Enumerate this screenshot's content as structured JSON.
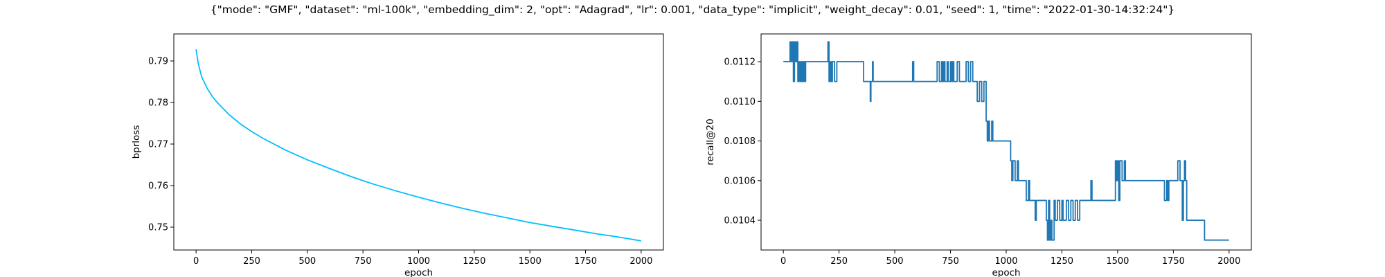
{
  "figure_title": "{\"mode\": \"GMF\", \"dataset\": \"ml-100k\", \"embedding_dim\": 2, \"opt\": \"Adagrad\", \"lr\": 0.001, \"data_type\": \"implicit\", \"weight_decay\": 0.01, \"seed\": 1, \"time\": \"2022-01-30-14:32:24\"}",
  "chart_data": [
    {
      "type": "line",
      "xlabel": "epoch",
      "ylabel": "bprloss",
      "xlim": [
        -100,
        2100
      ],
      "ylim": [
        0.7445,
        0.7965
      ],
      "xticks": [
        0,
        250,
        500,
        750,
        1000,
        1250,
        1500,
        1750,
        2000
      ],
      "xtick_labels": [
        "0",
        "250",
        "500",
        "750",
        "1000",
        "1250",
        "1500",
        "1750",
        "2000"
      ],
      "yticks": [
        0.75,
        0.76,
        0.77,
        0.78,
        0.79
      ],
      "ytick_labels": [
        "0.75",
        "0.76",
        "0.77",
        "0.78",
        "0.79"
      ],
      "grid": false,
      "series": [
        {
          "color": "#00bfff",
          "x": [
            0,
            10,
            25,
            50,
            75,
            100,
            150,
            200,
            250,
            300,
            400,
            500,
            600,
            700,
            800,
            900,
            1000,
            1100,
            1200,
            1300,
            1400,
            1500,
            1600,
            1700,
            1800,
            1900,
            2000
          ],
          "y": [
            0.7928,
            0.7893,
            0.7862,
            0.7834,
            0.7813,
            0.7797,
            0.777,
            0.7748,
            0.773,
            0.7714,
            0.7686,
            0.7662,
            0.7641,
            0.7621,
            0.7603,
            0.7587,
            0.7572,
            0.7558,
            0.7545,
            0.7533,
            0.7522,
            0.7511,
            0.7502,
            0.7493,
            0.7484,
            0.7476,
            0.7467
          ]
        }
      ]
    },
    {
      "type": "line",
      "xlabel": "epoch",
      "ylabel": "recall@20",
      "xlim": [
        -100,
        2100
      ],
      "ylim": [
        0.01025,
        0.01134
      ],
      "xticks": [
        0,
        250,
        500,
        750,
        1000,
        1250,
        1500,
        1750,
        2000
      ],
      "xtick_labels": [
        "0",
        "250",
        "500",
        "750",
        "1000",
        "1250",
        "1500",
        "1750",
        "2000"
      ],
      "yticks": [
        0.0104,
        0.0106,
        0.0108,
        0.011,
        0.0112
      ],
      "ytick_labels": [
        "0.0104",
        "0.0106",
        "0.0108",
        "0.0110",
        "0.0112"
      ],
      "grid": false,
      "series": [
        {
          "color": "#1f77b4",
          "steps": [
            [
              0,
              0.0112
            ],
            [
              30,
              0.0113
            ],
            [
              35,
              0.0112
            ],
            [
              40,
              0.0113
            ],
            [
              45,
              0.0111
            ],
            [
              50,
              0.0113
            ],
            [
              55,
              0.0112
            ],
            [
              60,
              0.0113
            ],
            [
              65,
              0.0111
            ],
            [
              70,
              0.0112
            ],
            [
              75,
              0.0111
            ],
            [
              80,
              0.0112
            ],
            [
              85,
              0.0111
            ],
            [
              90,
              0.0112
            ],
            [
              95,
              0.0111
            ],
            [
              100,
              0.0112
            ],
            [
              200,
              0.0113
            ],
            [
              205,
              0.0111
            ],
            [
              210,
              0.0112
            ],
            [
              215,
              0.0111
            ],
            [
              220,
              0.0112
            ],
            [
              230,
              0.0111
            ],
            [
              240,
              0.0112
            ],
            [
              360,
              0.0111
            ],
            [
              390,
              0.011
            ],
            [
              393,
              0.0111
            ],
            [
              400,
              0.0112
            ],
            [
              403,
              0.0111
            ],
            [
              580,
              0.0112
            ],
            [
              585,
              0.0111
            ],
            [
              690,
              0.0112
            ],
            [
              700,
              0.0111
            ],
            [
              710,
              0.0112
            ],
            [
              715,
              0.0111
            ],
            [
              720,
              0.0112
            ],
            [
              725,
              0.0111
            ],
            [
              735,
              0.0112
            ],
            [
              740,
              0.0111
            ],
            [
              750,
              0.0112
            ],
            [
              755,
              0.0111
            ],
            [
              760,
              0.0112
            ],
            [
              765,
              0.0111
            ],
            [
              780,
              0.0112
            ],
            [
              790,
              0.0111
            ],
            [
              820,
              0.0112
            ],
            [
              830,
              0.0111
            ],
            [
              840,
              0.0112
            ],
            [
              850,
              0.0111
            ],
            [
              870,
              0.011
            ],
            [
              880,
              0.0111
            ],
            [
              890,
              0.011
            ],
            [
              900,
              0.0111
            ],
            [
              910,
              0.0109
            ],
            [
              915,
              0.0108
            ],
            [
              920,
              0.0109
            ],
            [
              925,
              0.0108
            ],
            [
              935,
              0.0109
            ],
            [
              940,
              0.0108
            ],
            [
              1020,
              0.0107
            ],
            [
              1025,
              0.0106
            ],
            [
              1030,
              0.0107
            ],
            [
              1040,
              0.0106
            ],
            [
              1050,
              0.0107
            ],
            [
              1055,
              0.0106
            ],
            [
              1090,
              0.0105
            ],
            [
              1100,
              0.0106
            ],
            [
              1105,
              0.0105
            ],
            [
              1130,
              0.0104
            ],
            [
              1135,
              0.0105
            ],
            [
              1180,
              0.0104
            ],
            [
              1185,
              0.0103
            ],
            [
              1190,
              0.0105
            ],
            [
              1195,
              0.0103
            ],
            [
              1200,
              0.0104
            ],
            [
              1205,
              0.0103
            ],
            [
              1215,
              0.0105
            ],
            [
              1220,
              0.0104
            ],
            [
              1230,
              0.0105
            ],
            [
              1240,
              0.0104
            ],
            [
              1250,
              0.0105
            ],
            [
              1255,
              0.0104
            ],
            [
              1270,
              0.0105
            ],
            [
              1280,
              0.0104
            ],
            [
              1290,
              0.0105
            ],
            [
              1300,
              0.0104
            ],
            [
              1310,
              0.0105
            ],
            [
              1320,
              0.0104
            ],
            [
              1330,
              0.0105
            ],
            [
              1380,
              0.0106
            ],
            [
              1385,
              0.0105
            ],
            [
              1490,
              0.0107
            ],
            [
              1495,
              0.0106
            ],
            [
              1500,
              0.0107
            ],
            [
              1505,
              0.0105
            ],
            [
              1510,
              0.0107
            ],
            [
              1520,
              0.0106
            ],
            [
              1530,
              0.0107
            ],
            [
              1535,
              0.0106
            ],
            [
              1710,
              0.0105
            ],
            [
              1720,
              0.0106
            ],
            [
              1725,
              0.0105
            ],
            [
              1730,
              0.0106
            ],
            [
              1770,
              0.0107
            ],
            [
              1780,
              0.0106
            ],
            [
              1790,
              0.0104
            ],
            [
              1795,
              0.0106
            ],
            [
              1800,
              0.0107
            ],
            [
              1805,
              0.0106
            ],
            [
              1810,
              0.0104
            ],
            [
              1890,
              0.0103
            ],
            [
              2000,
              0.0103
            ]
          ]
        }
      ]
    }
  ]
}
